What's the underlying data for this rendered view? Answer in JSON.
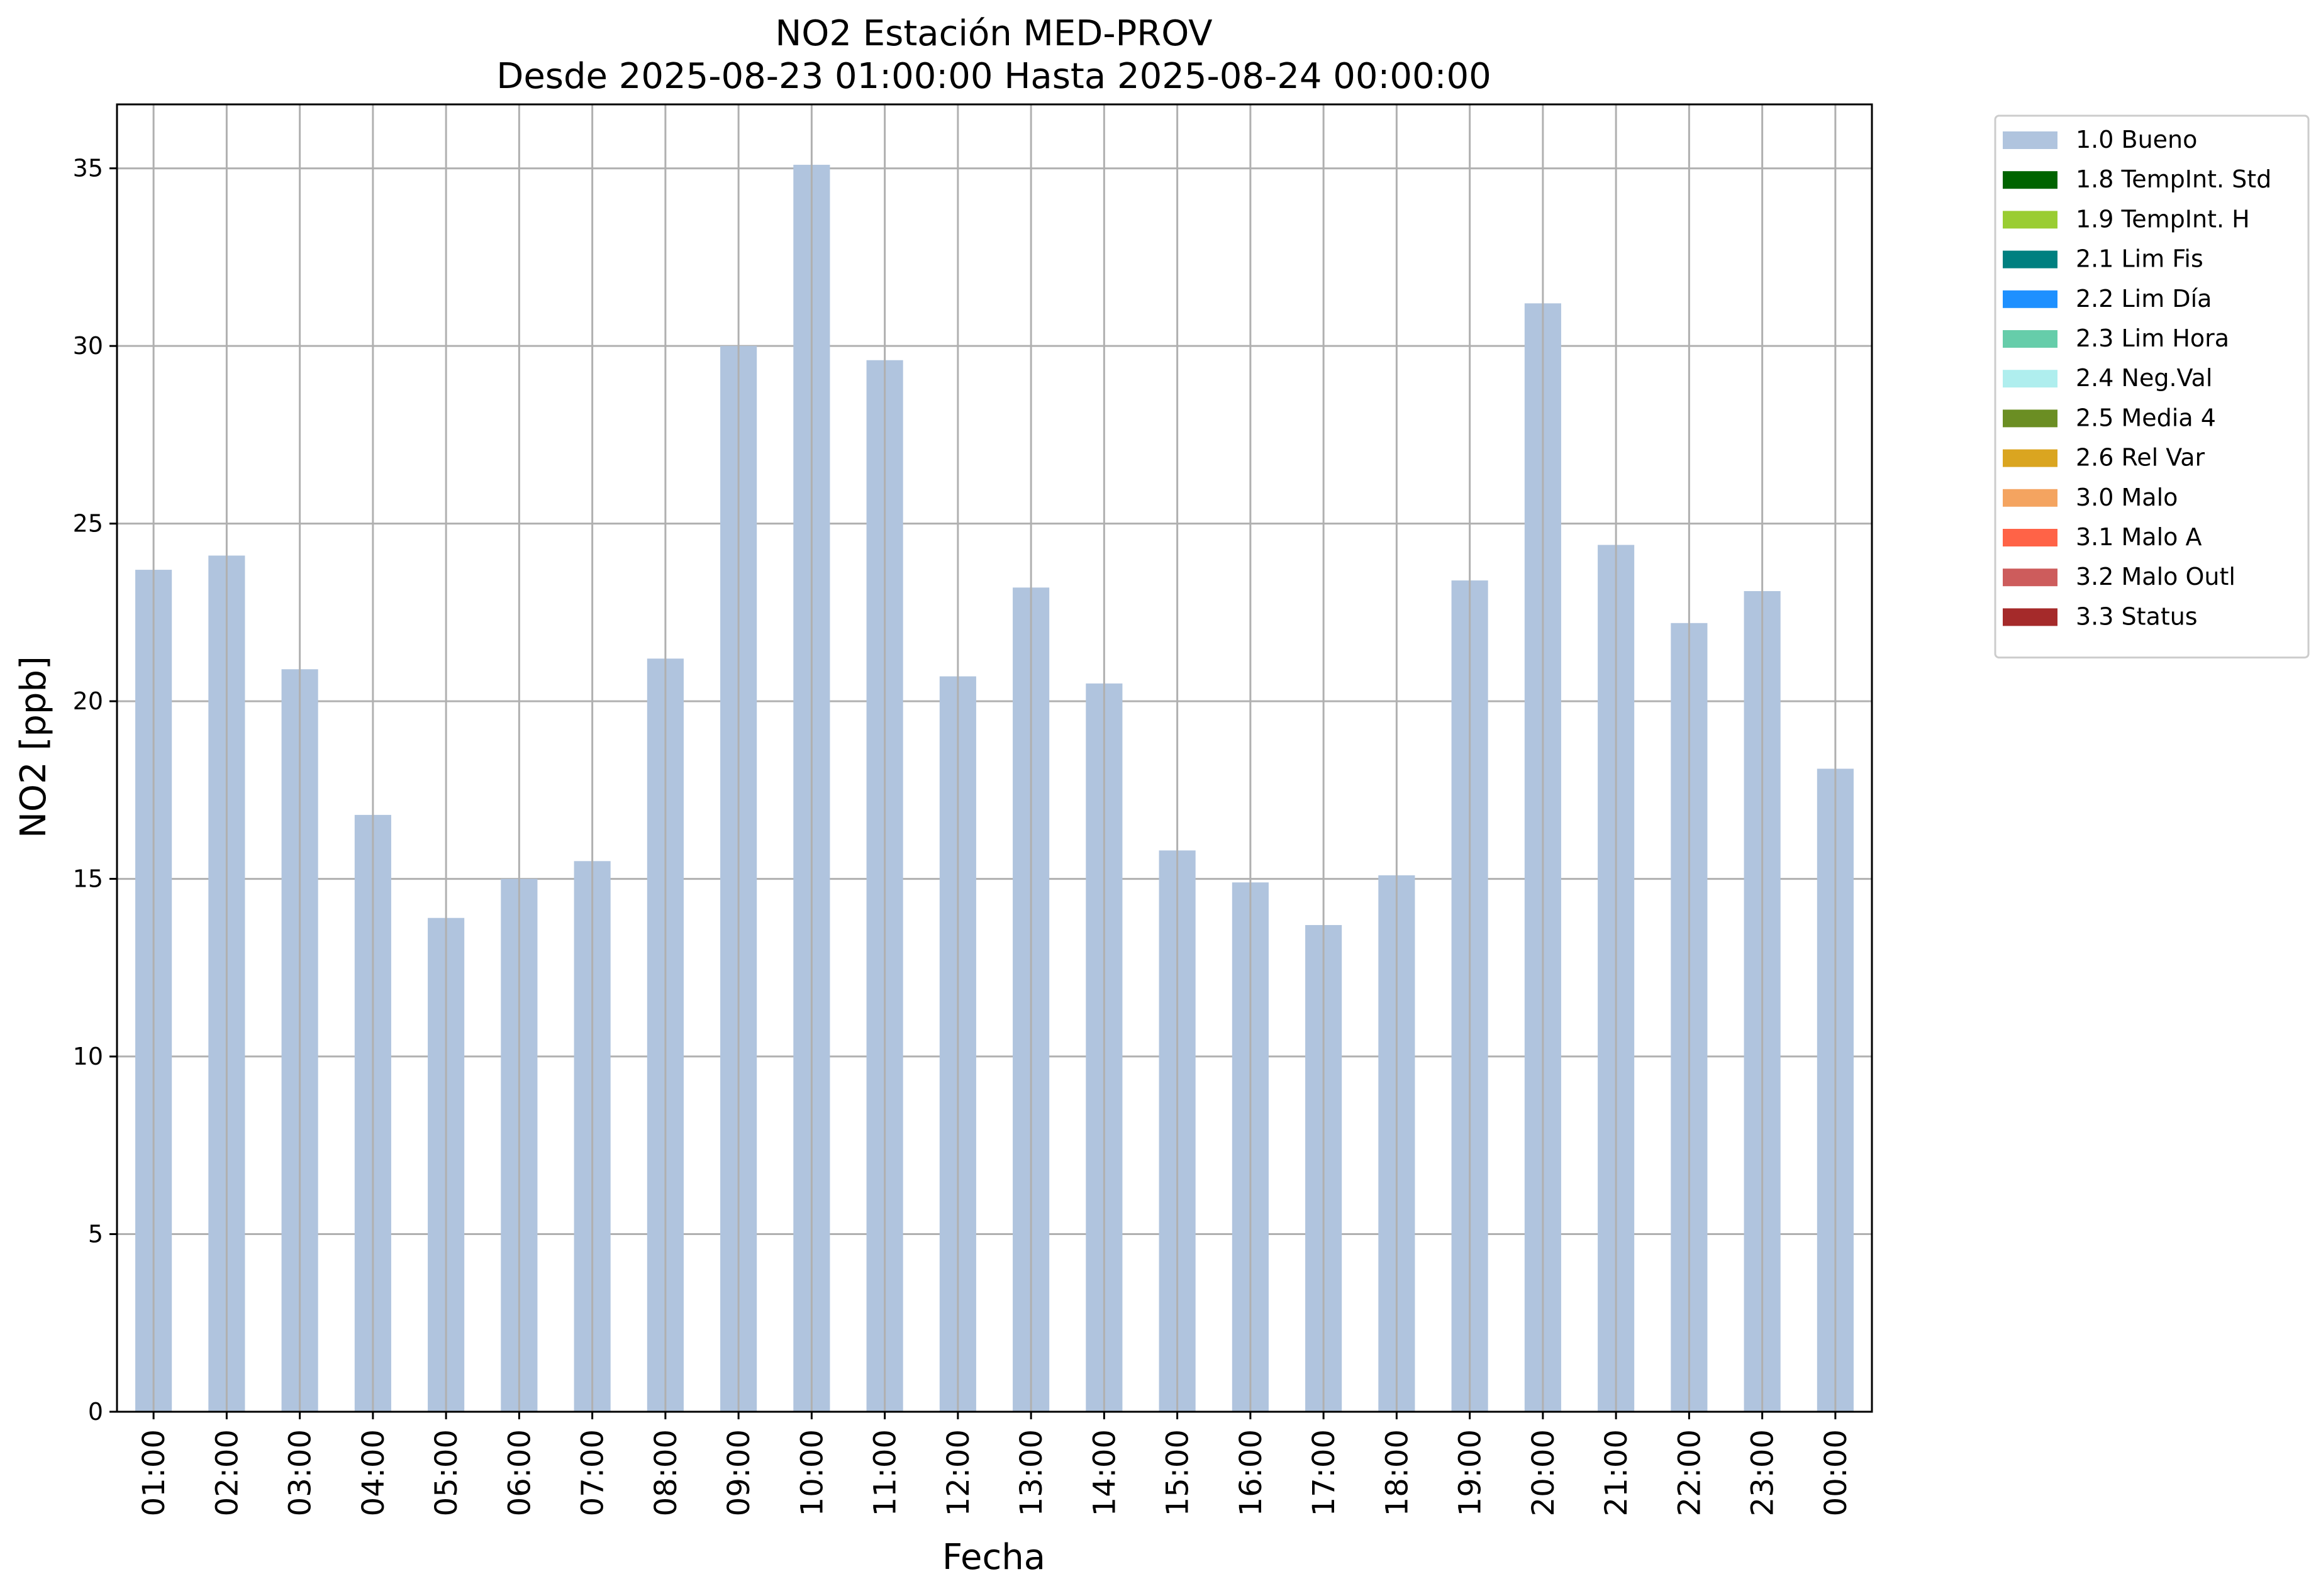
{
  "chart_data": {
    "type": "bar",
    "title": "NO2 Estación MED-PROV",
    "subtitle": "Desde 2025-08-23 01:00:00 Hasta 2025-08-24 00:00:00",
    "xlabel": "Fecha",
    "ylabel": "NO2 [ppb]",
    "ylim": [
      0,
      36.8
    ],
    "yticks": [
      0,
      5,
      10,
      15,
      20,
      25,
      30,
      35
    ],
    "grid": true,
    "legend_position": "outside-right",
    "categories": [
      "01:00",
      "02:00",
      "03:00",
      "04:00",
      "05:00",
      "06:00",
      "07:00",
      "08:00",
      "09:00",
      "10:00",
      "11:00",
      "12:00",
      "13:00",
      "14:00",
      "15:00",
      "16:00",
      "17:00",
      "18:00",
      "19:00",
      "20:00",
      "21:00",
      "22:00",
      "23:00",
      "00:00"
    ],
    "series": [
      {
        "name": "1.0 Bueno",
        "color": "#b0c4de",
        "values": [
          23.7,
          24.1,
          20.9,
          16.8,
          13.9,
          15.0,
          15.5,
          21.2,
          30.0,
          35.1,
          29.6,
          20.7,
          23.2,
          20.5,
          15.8,
          14.9,
          13.7,
          15.1,
          23.4,
          31.2,
          24.4,
          22.2,
          23.1,
          18.1
        ]
      }
    ],
    "legend": [
      {
        "label": "1.0 Bueno",
        "color": "#b0c4de"
      },
      {
        "label": "1.8 TempInt. Std",
        "color": "#006400"
      },
      {
        "label": "1.9 TempInt. H",
        "color": "#9acd32"
      },
      {
        "label": "2.1 Lim Fis",
        "color": "#008080"
      },
      {
        "label": "2.2 Lim Día",
        "color": "#1e90ff"
      },
      {
        "label": "2.3 Lim Hora",
        "color": "#66cdaa"
      },
      {
        "label": "2.4 Neg.Val",
        "color": "#afeeee"
      },
      {
        "label": "2.5 Media 4",
        "color": "#6b8e23"
      },
      {
        "label": "2.6 Rel Var",
        "color": "#daa520"
      },
      {
        "label": "3.0 Malo",
        "color": "#f4a460"
      },
      {
        "label": "3.1 Malo A",
        "color": "#ff6347"
      },
      {
        "label": "3.2 Malo Outl",
        "color": "#cd5c5c"
      },
      {
        "label": "3.3 Status",
        "color": "#a52a2a"
      }
    ]
  }
}
